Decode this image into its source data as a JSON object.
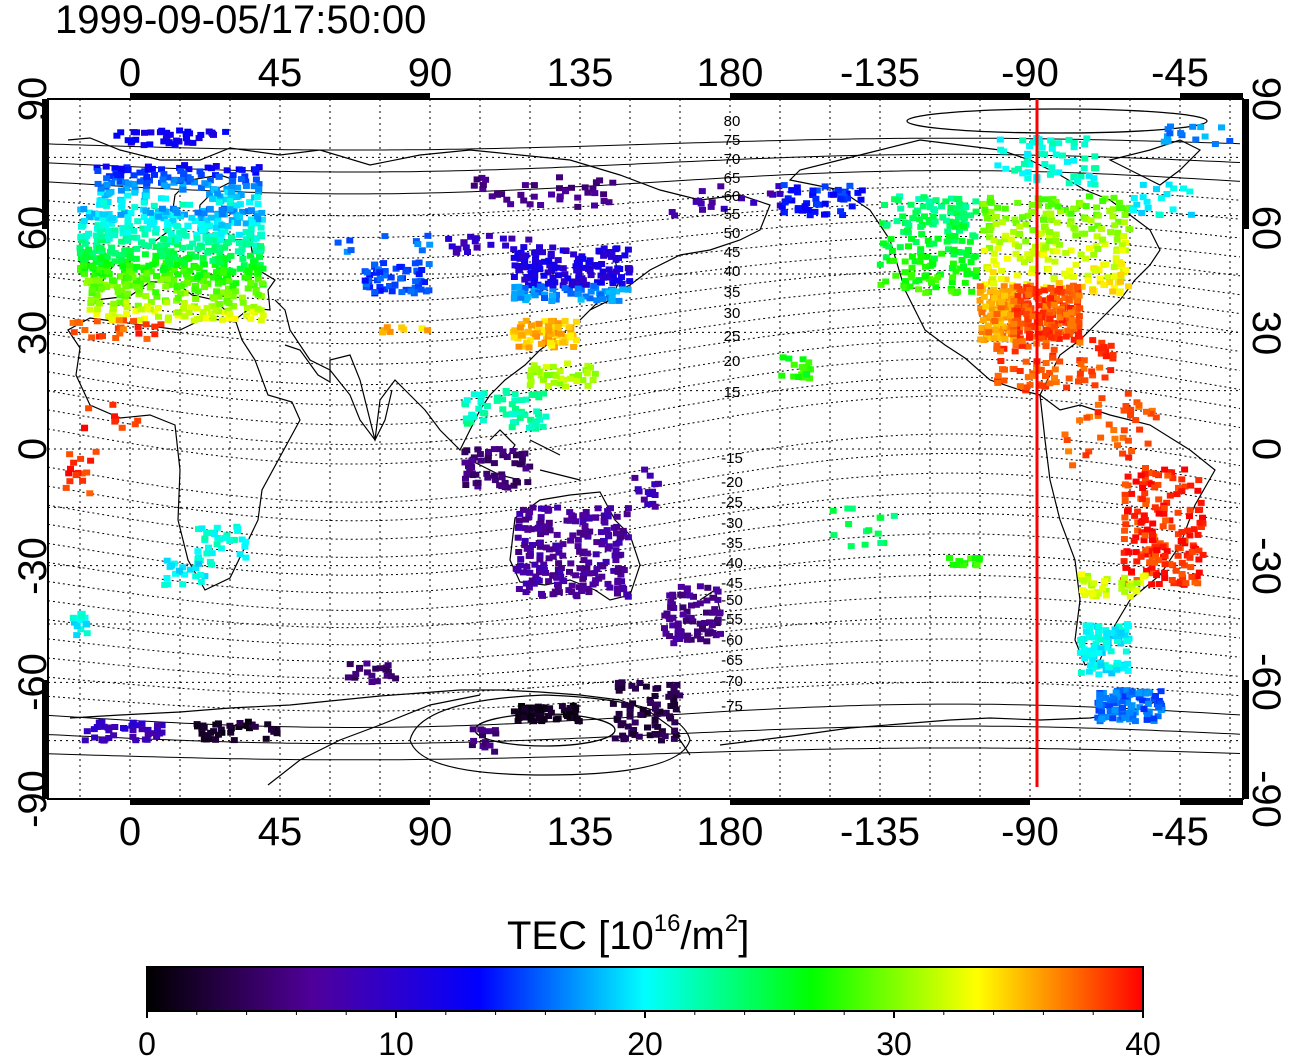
{
  "timestamp": "1999-09-05/17:50:00",
  "map": {
    "type": "TEC global map",
    "lon_ticks_top": [
      "0",
      "45",
      "90",
      "135",
      "180",
      "-135",
      "-90",
      "-45"
    ],
    "lon_ticks_bottom": [
      "0",
      "45",
      "90",
      "135",
      "180",
      "-135",
      "-90",
      "-45"
    ],
    "lat_ticks": [
      "90",
      "60",
      "30",
      "0",
      "-30",
      "-60",
      "-90"
    ],
    "magnetic_latitude_labels": [
      "80",
      "75",
      "70",
      "65",
      "60",
      "55",
      "50",
      "45",
      "40",
      "35",
      "30",
      "25",
      "20",
      "15",
      "-15",
      "-20",
      "-25",
      "-30",
      "-35",
      "-40",
      "-45",
      "-50",
      "-55",
      "-60",
      "-65",
      "-70",
      "-75"
    ],
    "marker_line": {
      "longitude": -87,
      "color": "#ff0000"
    }
  },
  "colorbar": {
    "title_main": "TEC  [10",
    "title_exp1": "16",
    "title_mid": "/m",
    "title_exp2": "2",
    "title_end": "]",
    "range": [
      0,
      40
    ],
    "ticks": [
      "0",
      "10",
      "20",
      "30",
      "40"
    ],
    "colors": [
      "#000000",
      "#2a004c",
      "#50009a",
      "#2b00d0",
      "#0000ff",
      "#0080ff",
      "#00ffff",
      "#00ff80",
      "#00ff00",
      "#80ff00",
      "#ffff00",
      "#ff8000",
      "#ff0000"
    ]
  }
}
